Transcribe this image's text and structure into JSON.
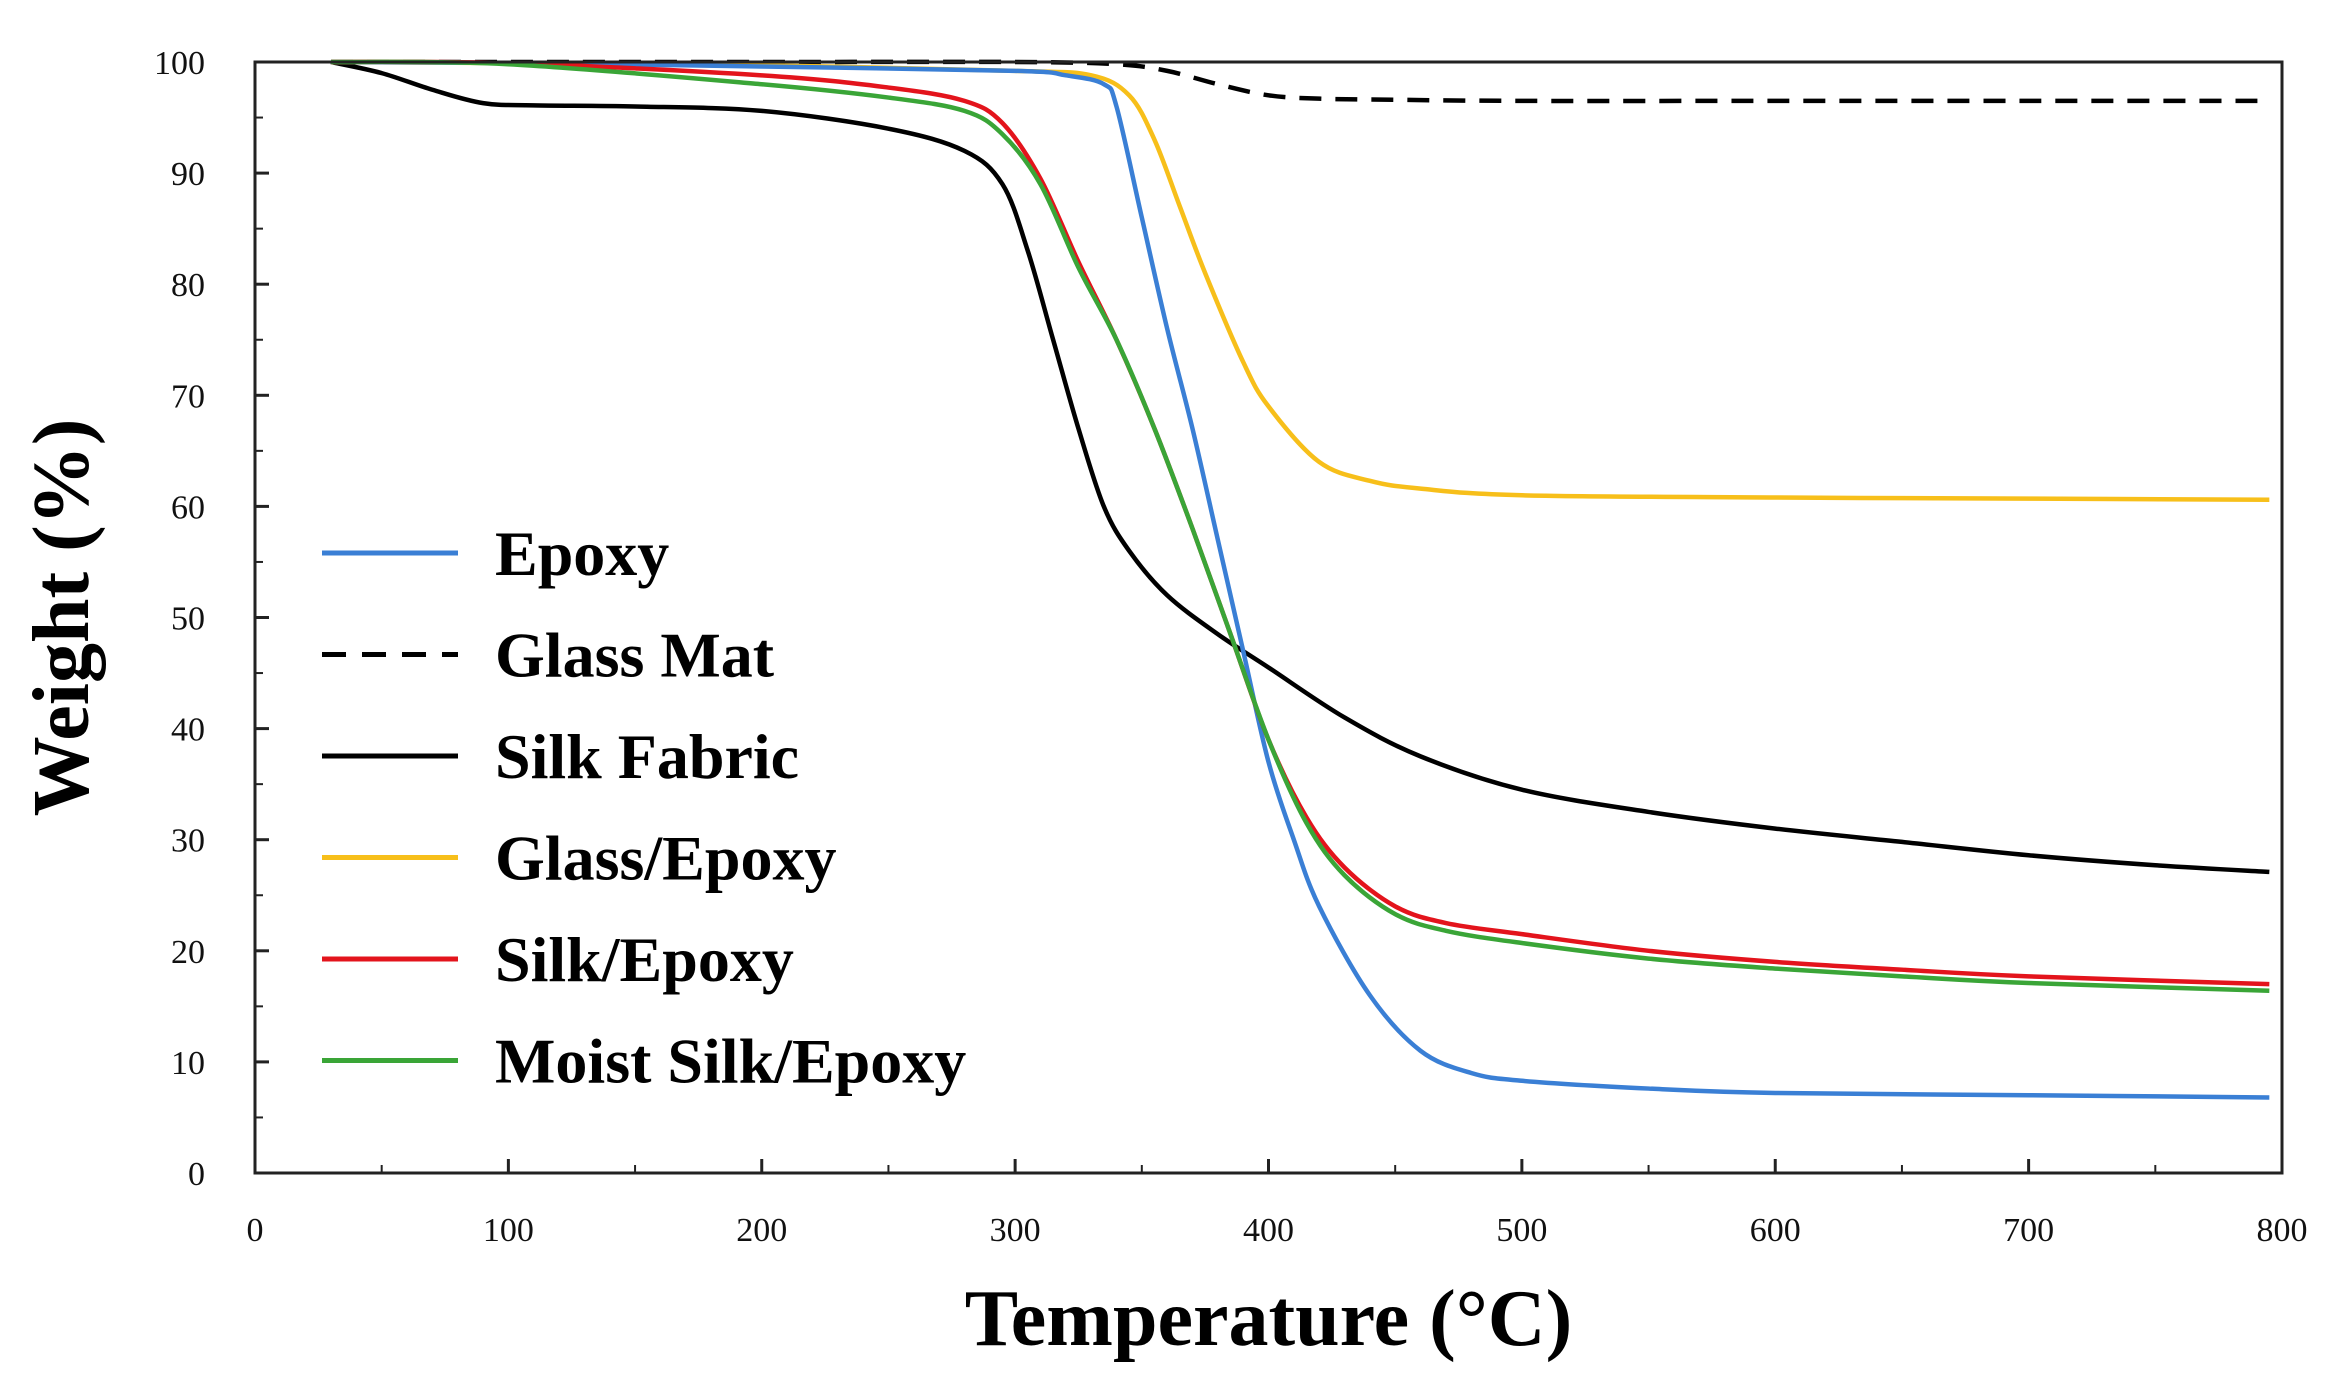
{
  "chart_data": {
    "type": "line",
    "title": "",
    "xlabel": "Temperature (°C)",
    "ylabel": "Weight (%)",
    "xlim": [
      0,
      800
    ],
    "ylim": [
      0,
      100
    ],
    "xticks": [
      "0",
      "100",
      "200",
      "300",
      "400",
      "500",
      "600",
      "700",
      "800"
    ],
    "yticks": [
      "0",
      "10",
      "20",
      "30",
      "40",
      "50",
      "60",
      "70",
      "80",
      "90",
      "100"
    ],
    "grid": false,
    "legend_position": "center-left",
    "series": [
      {
        "name": "Epoxy",
        "color": "#3a7fd5",
        "dash": false,
        "x": [
          30,
          100,
          200,
          300,
          320,
          335,
          340,
          350,
          360,
          370,
          380,
          390,
          400,
          410,
          420,
          440,
          460,
          480,
          500,
          550,
          600,
          700,
          795
        ],
        "y": [
          100,
          99.9,
          99.6,
          99.2,
          98.8,
          98,
          96,
          86,
          76,
          67,
          57,
          47,
          37,
          30,
          24,
          16,
          11,
          9,
          8.3,
          7.6,
          7.2,
          7.0,
          6.8
        ]
      },
      {
        "name": "Glass Mat",
        "color": "#000000",
        "dash": true,
        "x": [
          30,
          100,
          200,
          300,
          340,
          360,
          380,
          400,
          420,
          450,
          500,
          600,
          700,
          795
        ],
        "y": [
          100,
          100,
          100,
          100,
          99.8,
          99.2,
          98,
          97,
          96.7,
          96.6,
          96.5,
          96.5,
          96.5,
          96.5
        ]
      },
      {
        "name": "Silk Fabric",
        "color": "#000000",
        "dash": false,
        "x": [
          30,
          50,
          70,
          90,
          110,
          150,
          200,
          250,
          280,
          295,
          305,
          315,
          325,
          335,
          345,
          360,
          380,
          400,
          430,
          460,
          500,
          550,
          600,
          650,
          700,
          750,
          795
        ],
        "y": [
          100,
          99,
          97.5,
          96.3,
          96.1,
          96,
          95.6,
          94,
          92,
          89,
          83,
          75,
          67,
          60,
          56,
          52,
          48.5,
          45.5,
          41,
          37.5,
          34.5,
          32.5,
          31,
          29.8,
          28.6,
          27.7,
          27.1
        ]
      },
      {
        "name": "Glass/Epoxy",
        "color": "#f7bf1a",
        "dash": false,
        "x": [
          30,
          100,
          200,
          300,
          330,
          345,
          355,
          365,
          375,
          390,
          400,
          420,
          440,
          460,
          500,
          600,
          700,
          795
        ],
        "y": [
          100,
          99.9,
          99.7,
          99.2,
          98.8,
          97,
          93,
          87,
          81,
          73,
          69,
          64,
          62.3,
          61.6,
          61,
          60.8,
          60.7,
          60.6
        ]
      },
      {
        "name": "Silk/Epoxy",
        "color": "#e3141c",
        "dash": false,
        "x": [
          30,
          100,
          200,
          250,
          280,
          295,
          310,
          325,
          340,
          355,
          370,
          385,
          400,
          415,
          430,
          450,
          470,
          500,
          550,
          600,
          650,
          700,
          795
        ],
        "y": [
          100,
          99.9,
          98.8,
          97.7,
          96.5,
          94.5,
          89.5,
          82,
          75,
          67,
          58,
          48.5,
          39,
          32,
          27.5,
          24,
          22.5,
          21.5,
          20,
          19,
          18.3,
          17.7,
          17.0
        ]
      },
      {
        "name": "Moist Silk/Epoxy",
        "color": "#3aa537",
        "dash": false,
        "x": [
          30,
          100,
          200,
          250,
          280,
          295,
          310,
          325,
          340,
          355,
          370,
          385,
          400,
          415,
          430,
          450,
          470,
          500,
          550,
          600,
          650,
          700,
          795
        ],
        "y": [
          100,
          99.8,
          98,
          96.8,
          95.6,
          93.5,
          89,
          81.5,
          75,
          67,
          58,
          48.5,
          39,
          31.5,
          26.8,
          23.3,
          21.8,
          20.7,
          19.3,
          18.4,
          17.7,
          17.1,
          16.4
        ]
      }
    ]
  }
}
